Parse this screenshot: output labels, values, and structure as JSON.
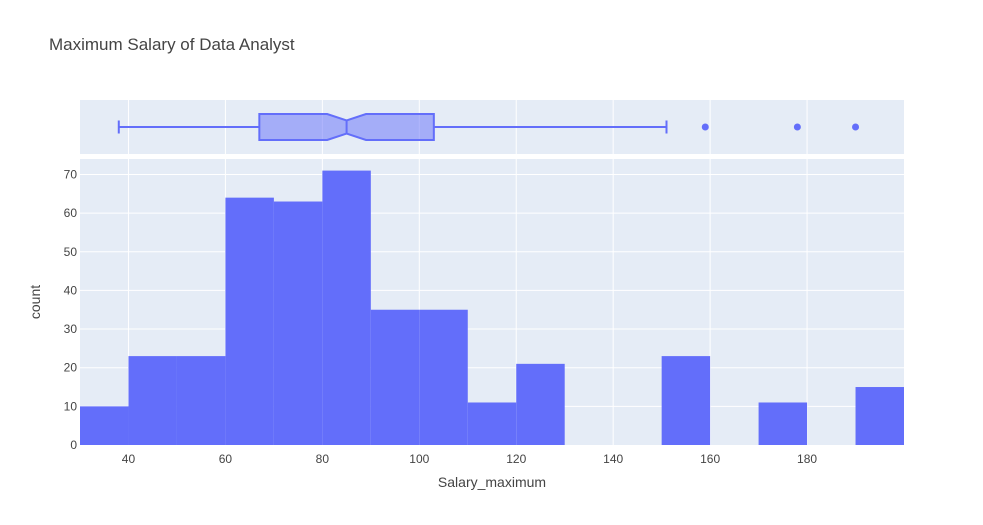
{
  "chart_data": {
    "type": "bar",
    "title": "Maximum Salary of Data Analyst",
    "xlabel": "Salary_maximum",
    "ylabel": "count",
    "xlim": [
      30,
      200
    ],
    "ylim": [
      0,
      74
    ],
    "bin_width": 10,
    "bins": [
      {
        "x0": 30,
        "x1": 40,
        "count": 10
      },
      {
        "x0": 40,
        "x1": 50,
        "count": 23
      },
      {
        "x0": 50,
        "x1": 60,
        "count": 23
      },
      {
        "x0": 60,
        "x1": 70,
        "count": 64
      },
      {
        "x0": 70,
        "x1": 80,
        "count": 63
      },
      {
        "x0": 80,
        "x1": 90,
        "count": 71
      },
      {
        "x0": 90,
        "x1": 100,
        "count": 35
      },
      {
        "x0": 100,
        "x1": 110,
        "count": 35
      },
      {
        "x0": 110,
        "x1": 120,
        "count": 11
      },
      {
        "x0": 120,
        "x1": 130,
        "count": 21
      },
      {
        "x0": 130,
        "x1": 140,
        "count": 0
      },
      {
        "x0": 140,
        "x1": 150,
        "count": 0
      },
      {
        "x0": 150,
        "x1": 160,
        "count": 23
      },
      {
        "x0": 160,
        "x1": 170,
        "count": 0
      },
      {
        "x0": 170,
        "x1": 180,
        "count": 11
      },
      {
        "x0": 180,
        "x1": 190,
        "count": 0
      },
      {
        "x0": 190,
        "x1": 200,
        "count": 15
      }
    ],
    "x_ticks": [
      "40",
      "60",
      "80",
      "100",
      "120",
      "140",
      "160",
      "180"
    ],
    "y_ticks": [
      "0",
      "10",
      "20",
      "30",
      "40",
      "50",
      "60",
      "70"
    ],
    "box": {
      "min": 38,
      "q1": 67,
      "median": 85,
      "q3": 103,
      "max": 151,
      "notch_low": 81,
      "notch_high": 89,
      "outliers": [
        159,
        178,
        190
      ]
    },
    "colors": {
      "bar": "#636efa",
      "box_fill": "rgba(99,110,250,0.5)",
      "plot_bg": "#e5ecf6",
      "grid": "#ffffff"
    },
    "grid": true
  }
}
